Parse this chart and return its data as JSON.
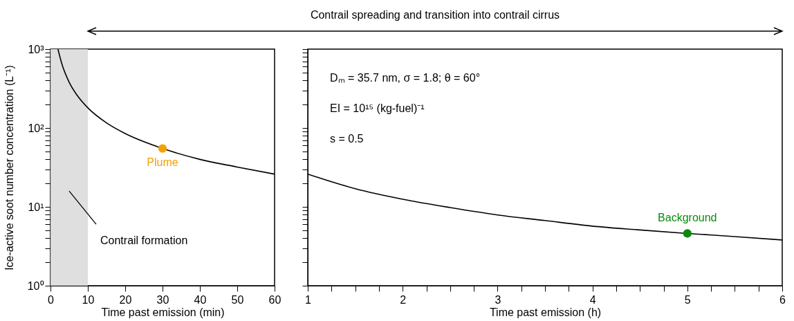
{
  "chart_data": [
    {
      "type": "line",
      "xlabel": "Time past emission (min)",
      "ylabel": "Ice-active soot number concentration (L⁻¹)",
      "log": true,
      "grid": false,
      "line_style": "solid",
      "xlim": [
        0,
        60
      ],
      "xticks": [
        0,
        10,
        20,
        30,
        40,
        50,
        60
      ],
      "ylim": [
        1,
        1000
      ],
      "yticks": [
        {
          "value": 1,
          "label": "10⁰"
        },
        {
          "value": 2,
          "label": null
        },
        {
          "value": 3,
          "label": null
        },
        {
          "value": 4,
          "label": null
        },
        {
          "value": 5,
          "label": null
        },
        {
          "value": 6,
          "label": null
        },
        {
          "value": 7,
          "label": null
        },
        {
          "value": 8,
          "label": null
        },
        {
          "value": 9,
          "label": null
        },
        {
          "value": 10,
          "label": "10¹"
        },
        {
          "value": 20,
          "label": null
        },
        {
          "value": 30,
          "label": null
        },
        {
          "value": 40,
          "label": null
        },
        {
          "value": 50,
          "label": null
        },
        {
          "value": 60,
          "label": null
        },
        {
          "value": 70,
          "label": null
        },
        {
          "value": 80,
          "label": null
        },
        {
          "value": 90,
          "label": null
        },
        {
          "value": 100,
          "label": "10²"
        },
        {
          "value": 200,
          "label": null
        },
        {
          "value": 300,
          "label": null
        },
        {
          "value": 400,
          "label": null
        },
        {
          "value": 500,
          "label": null
        },
        {
          "value": 600,
          "label": null
        },
        {
          "value": 700,
          "label": null
        },
        {
          "value": 800,
          "label": null
        },
        {
          "value": 900,
          "label": null
        },
        {
          "value": 1000,
          "label": "10³"
        }
      ],
      "bands": [
        {
          "axis": "x",
          "from": 0,
          "to": 10,
          "label": "Contrail formation",
          "color": "#dcdcdc"
        }
      ],
      "annotations": [
        "Contrail spreading and transition into contrail cirrus"
      ],
      "series": [
        {
          "color": "#000000",
          "x": [
            2,
            3,
            5,
            7,
            10,
            15,
            20,
            30,
            40,
            50,
            60
          ],
          "values": [
            1000,
            660,
            380,
            265,
            180,
            116,
            85,
            55,
            40,
            32,
            26
          ]
        },
        {
          "type": "scatter",
          "name": "Plume",
          "color": "#f5a000",
          "x": [
            30
          ],
          "values": [
            55
          ]
        }
      ]
    },
    {
      "type": "line",
      "xlabel": "Time past emission (h)",
      "log": true,
      "grid": false,
      "line_style": "solid",
      "tick_labels": "x",
      "xlim": [
        1,
        6
      ],
      "xticks": [
        1,
        {
          "value": 1.25,
          "label": null
        },
        {
          "value": 1.5,
          "label": null
        },
        {
          "value": 1.75,
          "label": null
        },
        2,
        {
          "value": 2.25,
          "label": null
        },
        {
          "value": 2.5,
          "label": null
        },
        {
          "value": 2.75,
          "label": null
        },
        3,
        {
          "value": 3.25,
          "label": null
        },
        {
          "value": 3.5,
          "label": null
        },
        {
          "value": 3.75,
          "label": null
        },
        4,
        {
          "value": 4.25,
          "label": null
        },
        {
          "value": 4.5,
          "label": null
        },
        {
          "value": 4.75,
          "label": null
        },
        5,
        {
          "value": 5.25,
          "label": null
        },
        {
          "value": 5.5,
          "label": null
        },
        {
          "value": 5.75,
          "label": null
        },
        6
      ],
      "ylim": [
        1,
        1000
      ],
      "yticks": [
        1,
        2,
        3,
        4,
        5,
        6,
        7,
        8,
        9,
        10,
        20,
        30,
        40,
        50,
        60,
        70,
        80,
        90,
        100,
        200,
        300,
        400,
        500,
        600,
        700,
        800,
        900,
        1000
      ],
      "annotations": [
        "Dₘ = 35.7 nm, σ = 1.8; θ = 60°",
        "EI = 10¹⁵ (kg-fuel)⁻¹",
        "s = 0.5"
      ],
      "series": [
        {
          "color": "#000000",
          "x": [
            1,
            1.5,
            2,
            2.5,
            3,
            3.5,
            4,
            4.5,
            5,
            5.5,
            6
          ],
          "values": [
            26,
            17,
            12.5,
            9.8,
            7.9,
            6.7,
            5.7,
            5.1,
            4.6,
            4.2,
            3.8
          ]
        },
        {
          "type": "scatter",
          "name": "Background",
          "color": "#0a8a0a",
          "x": [
            5
          ],
          "values": [
            4.6
          ]
        }
      ]
    }
  ]
}
